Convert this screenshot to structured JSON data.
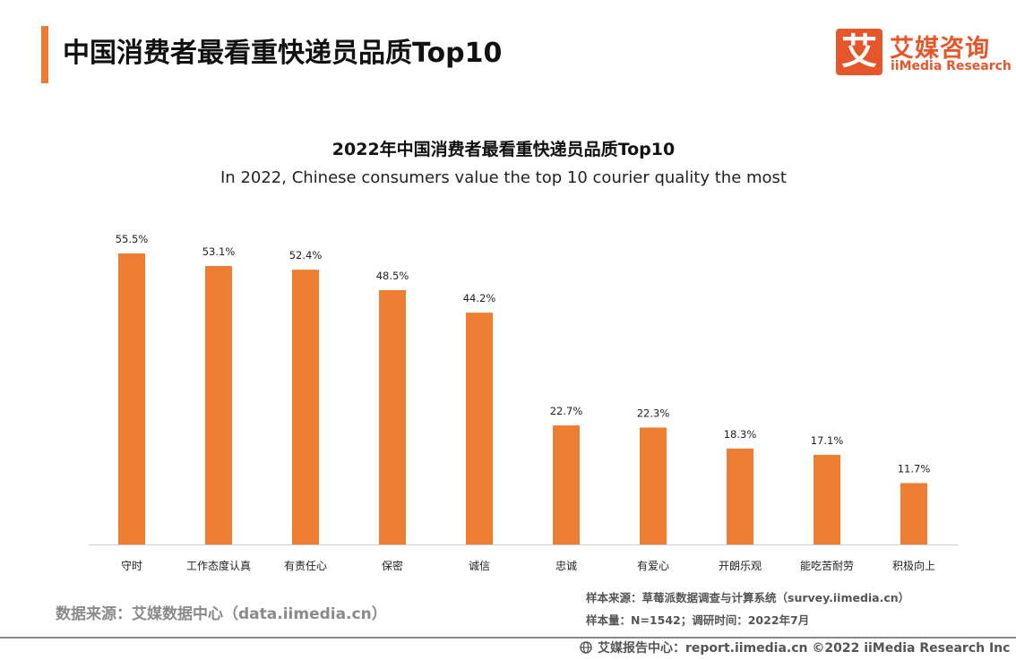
{
  "header": {
    "title": "中国消费者最看重快递员品质Top10"
  },
  "logo": {
    "mark": "艾",
    "name_cn": "艾媒咨询",
    "name_en": "iiMedia Research"
  },
  "colors": {
    "accent": "#ee7a31",
    "bar": "#ed7d31",
    "brand": "#e6562b"
  },
  "chart_data": {
    "type": "bar",
    "title": "2022年中国消费者最看重快递员品质Top10",
    "subtitle": "In 2022, Chinese consumers value the top 10 courier quality the most",
    "categories": [
      "守时",
      "工作态度认真",
      "有责任心",
      "保密",
      "诚信",
      "忠诚",
      "有爱心",
      "开朗乐观",
      "能吃苦耐劳",
      "积极向上"
    ],
    "values": [
      55.5,
      53.1,
      52.4,
      48.5,
      44.2,
      22.7,
      22.3,
      18.3,
      17.1,
      11.7
    ],
    "value_labels": [
      "55.5%",
      "53.1%",
      "52.4%",
      "48.5%",
      "44.2%",
      "22.7%",
      "22.3%",
      "18.3%",
      "17.1%",
      "11.7%"
    ],
    "unit": "%",
    "xlabel": "",
    "ylabel": "",
    "ylim": [
      0,
      60
    ],
    "grid": false,
    "legend": "none"
  },
  "footer": {
    "source_left": "数据来源：艾媒数据中心（data.iimedia.cn）",
    "sample_source": "样本来源：草莓派数据调查与计算系统（survey.iimedia.cn）",
    "sample_size": "样本量：N=1542；调研时间：2022年7月",
    "copyright": "艾媒报告中心：report.iimedia.cn   ©2022  iiMedia Research  Inc",
    "globe_icon": "globe-icon"
  }
}
